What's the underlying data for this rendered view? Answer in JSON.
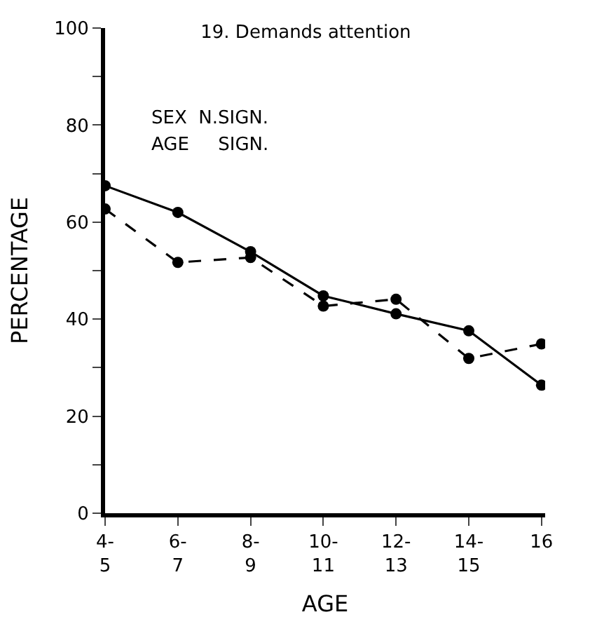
{
  "chart_data": {
    "type": "line",
    "title": "19. Demands attention",
    "xlabel": "AGE",
    "ylabel": "PERCENTAGE",
    "categories": [
      "4-\n5",
      "6-\n7",
      "8-\n9",
      "10-\n11",
      "12-\n13",
      "14-\n15",
      "16"
    ],
    "series": [
      {
        "color": "#000000",
        "line_style": "solid",
        "values": [
          67.5,
          62.0,
          53.9,
          44.8,
          41.1,
          37.6,
          26.4
        ]
      },
      {
        "color": "#000000",
        "line_style": "dashed",
        "values": [
          62.7,
          51.7,
          52.7,
          42.7,
          44.1,
          31.9,
          34.9
        ]
      }
    ],
    "marker": "circle",
    "ylim": [
      0,
      100
    ],
    "yticks": [
      0,
      {
        "value": 10,
        "label": null
      },
      20,
      {
        "value": 30,
        "label": null
      },
      40,
      {
        "value": 50,
        "label": null
      },
      60,
      {
        "value": 70,
        "label": null
      },
      80,
      {
        "value": 90,
        "label": null
      },
      100
    ],
    "annotations": [
      "SEX  N.SIGN.",
      "AGE     SIGN."
    ]
  }
}
